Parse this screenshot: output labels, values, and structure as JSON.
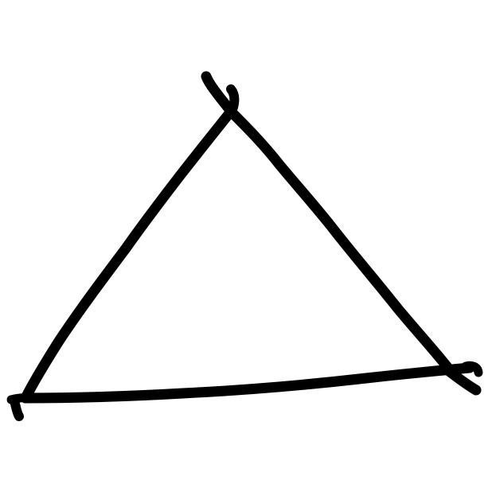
{
  "drawing": {
    "subject": "triangle-icon",
    "stroke_color": "#000000",
    "background_color": "#ffffff"
  }
}
